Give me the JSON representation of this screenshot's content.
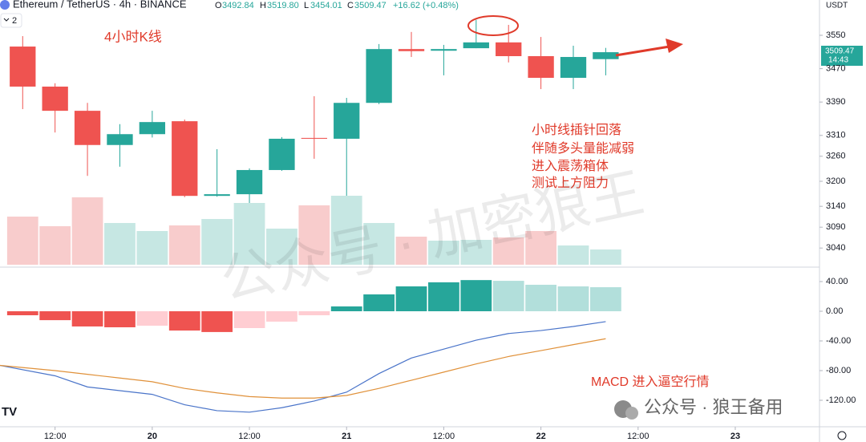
{
  "header": {
    "symbol": "Ethereum / TetherUS · 4h · BINANCE",
    "o_label": "O",
    "o": "3492.84",
    "h_label": "H",
    "h": "3519.80",
    "l_label": "L",
    "l": "3454.01",
    "c_label": "C",
    "c": "3509.47",
    "change": "+16.62 (+0.48%)",
    "indicator_count": "2",
    "currency": "USDT",
    "last_price": "3509.47",
    "countdown": "14:43"
  },
  "annotations": {
    "kline_title": "4小时K线",
    "note": [
      "小时线插针回落",
      "伴随多头量能减弱",
      "进入震荡箱体",
      "测试上方阻力"
    ],
    "macd_note": "MACD 进入逼空行情",
    "watermark": "公众号 · 加密狼王",
    "footer_watermark": "公众号 · 狼王备用"
  },
  "chart_data": [
    {
      "type": "candlestick",
      "x": [
        0,
        1,
        2,
        3,
        4,
        5,
        6,
        7,
        8,
        9,
        10,
        11,
        12,
        13,
        14,
        15,
        16,
        17,
        18
      ],
      "open": [
        3523,
        3427,
        3369,
        3287,
        3313,
        3344,
        3165,
        3169,
        3227,
        3304,
        3302,
        3388,
        3517,
        3513,
        3519,
        3533,
        3500,
        3448,
        3492.84
      ],
      "high": [
        3548,
        3435,
        3388,
        3337,
        3369,
        3348,
        3277,
        3231,
        3306,
        3404,
        3400,
        3529,
        3558,
        3527,
        3587,
        3575,
        3546,
        3525,
        3519.8
      ],
      "low": [
        3373,
        3317,
        3213,
        3235,
        3305,
        3162,
        3163,
        3062,
        3225,
        3254,
        3150,
        3385,
        3498,
        3454,
        3519,
        3485,
        3421,
        3421,
        3454.01
      ],
      "close": [
        3427,
        3369,
        3287,
        3313,
        3342,
        3165,
        3169,
        3227,
        3302,
        3302,
        3388,
        3517,
        3512,
        3517,
        3533,
        3500,
        3448,
        3498,
        3509.47
      ],
      "up_color": "#26a69a",
      "down_color": "#ef5350",
      "xlim": [
        -0.7,
        24.6
      ],
      "xticks": [
        {
          "value": 1,
          "label": "12:00"
        },
        {
          "value": 4,
          "label": "20"
        },
        {
          "value": 7,
          "label": "12:00"
        },
        {
          "value": 10,
          "label": "21"
        },
        {
          "value": 13,
          "label": "12:00"
        },
        {
          "value": 16,
          "label": "22"
        },
        {
          "value": 19,
          "label": "12:00"
        },
        {
          "value": 22,
          "label": "23"
        }
      ],
      "ylim": [
        3000,
        3634.6
      ],
      "yticks": [
        3550,
        3470,
        3390,
        3310,
        3260,
        3200,
        3140,
        3090,
        3040
      ]
    },
    {
      "type": "bar",
      "x": [
        0,
        1,
        2,
        3,
        4,
        5,
        6,
        7,
        8,
        9,
        10,
        11,
        12,
        13,
        14,
        15,
        16,
        17,
        18
      ],
      "values": [
        60,
        48,
        84,
        52,
        42,
        49,
        57,
        77,
        45,
        74,
        86,
        52,
        35,
        30,
        31,
        34,
        42,
        24,
        19
      ],
      "colors": [
        "#f8cccc",
        "#f8cccc",
        "#f8cccc",
        "#c6e7e3",
        "#c6e7e3",
        "#f8cccc",
        "#c6e7e3",
        "#c6e7e3",
        "#c6e7e3",
        "#f8cccc",
        "#c6e7e3",
        "#c6e7e3",
        "#f8cccc",
        "#c6e7e3",
        "#c6e7e3",
        "#f8cccc",
        "#f8cccc",
        "#c6e7e3",
        "#c6e7e3"
      ],
      "ylim": [
        0,
        330
      ]
    },
    {
      "type": "macd",
      "ylim": [
        -153.5,
        57.3
      ],
      "yticks": [
        {
          "value": 40,
          "label": "40.00"
        },
        {
          "value": 0,
          "label": "0.00"
        },
        {
          "value": -40,
          "label": "-40.00"
        },
        {
          "value": -80,
          "label": "-80.00"
        },
        {
          "value": -120,
          "label": "-120.00"
        }
      ],
      "histogram": {
        "x": [
          0,
          1,
          2,
          3,
          4,
          5,
          6,
          7,
          8,
          9,
          10,
          11,
          12,
          13,
          14,
          15,
          16,
          17,
          18
        ],
        "values": [
          -5.4,
          -12,
          -20.5,
          -21.6,
          -19.5,
          -26,
          -28,
          -22.7,
          -14,
          -5.4,
          6.5,
          22.7,
          33.5,
          39,
          42,
          41,
          35.7,
          33.5,
          32.4
        ],
        "colors": [
          "#ef5350",
          "#ef5350",
          "#ef5350",
          "#ef5350",
          "#ffcdd2",
          "#ef5350",
          "#ef5350",
          "#ffcdd2",
          "#ffcdd2",
          "#ffcdd2",
          "#26a69a",
          "#26a69a",
          "#26a69a",
          "#26a69a",
          "#26a69a",
          "#b2dfdb",
          "#b2dfdb",
          "#b2dfdb",
          "#b2dfdb"
        ]
      },
      "series": [
        {
          "color": "#4a74c9",
          "x": [
            -0.7,
            1,
            2,
            3,
            4,
            5,
            6,
            7,
            8,
            9,
            10,
            11,
            12,
            13,
            14,
            15,
            16,
            17,
            18
          ],
          "values": [
            -73,
            -87,
            -102,
            -107,
            -112,
            -126,
            -134,
            -136,
            -130,
            -121,
            -109,
            -84,
            -63,
            -51,
            -39,
            -30,
            -26,
            -20.5,
            -14
          ]
        },
        {
          "color": "#e0913a",
          "x": [
            -0.7,
            1,
            2,
            3,
            4,
            5,
            6,
            7,
            8,
            9,
            10,
            11,
            12,
            13,
            14,
            15,
            16,
            17,
            18
          ],
          "values": [
            -73,
            -80,
            -85,
            -90,
            -95,
            -104,
            -110,
            -115,
            -117,
            -117,
            -113.5,
            -104,
            -93,
            -82,
            -71,
            -61,
            -53,
            -45,
            -37
          ]
        }
      ]
    }
  ]
}
